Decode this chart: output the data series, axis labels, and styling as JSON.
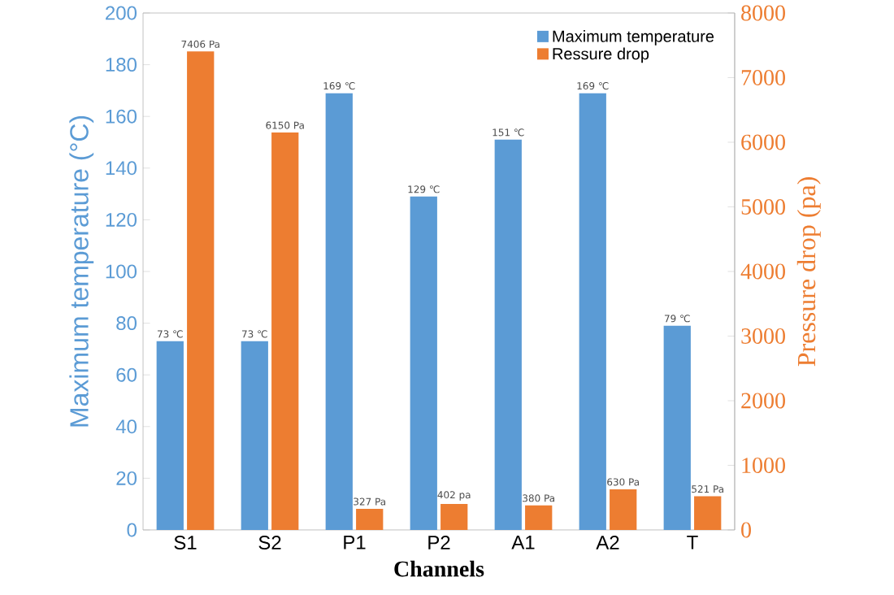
{
  "chart_data": {
    "type": "bar",
    "xlabel": "Channels",
    "ylabel": "Maximum temperature (°C)",
    "y2label": "Pressure drop (pa)",
    "categories": [
      "S1",
      "S2",
      "P1",
      "P2",
      "A1",
      "A2",
      "T"
    ],
    "series": [
      {
        "name": "Maximum temperature",
        "color": "#5b9bd5",
        "values": [
          73,
          73,
          169,
          129,
          151,
          169,
          79
        ],
        "value_labels": [
          "73 ℃",
          "73 ℃",
          "169 ℃",
          "129 ℃",
          "151 ℃",
          "169 ℃",
          "79 ℃"
        ]
      },
      {
        "name": "Ressure drop",
        "color": "#ed7d31",
        "axis": "y2",
        "values": [
          7406,
          6150,
          327,
          402,
          380,
          630,
          521
        ],
        "value_labels": [
          "7406 Pa",
          "6150 Pa",
          "327 Pa",
          "402 pa",
          "380 Pa",
          "630 Pa",
          "521 Pa"
        ]
      }
    ],
    "ylim": [
      0,
      200
    ],
    "yticks": [
      0,
      20,
      40,
      60,
      80,
      100,
      120,
      140,
      160,
      180,
      200
    ],
    "y2lim": [
      0,
      8000
    ],
    "y2ticks": [
      0,
      1000,
      2000,
      3000,
      4000,
      5000,
      6000,
      7000,
      8000
    ],
    "legend": "top right"
  }
}
